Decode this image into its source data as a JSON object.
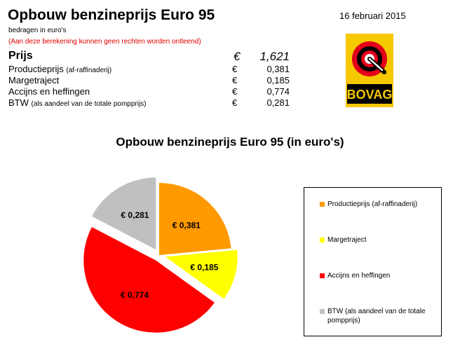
{
  "header": {
    "title": "Opbouw benzineprijs Euro 95",
    "date": "16 februari 2015",
    "subtitle": "bedragen in euro's",
    "disclaimer": "(Aan deze berekening kunnen geen rechten worden ontleend)"
  },
  "summary": {
    "total": {
      "label": "Prijs",
      "currency": "€",
      "value": "1,621"
    },
    "rows": [
      {
        "label": "Productieprijs",
        "note": "(af-raffinaderij)",
        "currency": "€",
        "value": "0,381"
      },
      {
        "label": "Margetraject",
        "note": "",
        "currency": "€",
        "value": "0,185"
      },
      {
        "label": "Accijns en heffingen",
        "note": "",
        "currency": "€",
        "value": "0,774"
      },
      {
        "label": "BTW",
        "note": "(als aandeel van de totale pompprijs)",
        "currency": "€",
        "value": "0,281"
      }
    ]
  },
  "logo": {
    "text": "BOVAG",
    "icon": "bovag-logo-icon",
    "colors": {
      "yellow": "#f5c800",
      "red": "#e3001b",
      "black": "#000000"
    }
  },
  "chart_data": {
    "type": "pie",
    "title": "Opbouw benzineprijs Euro 95 (in euro's)",
    "slices": [
      {
        "name": "Productieprijs (af-raffinaderij)",
        "value": 0.381,
        "label": "€ 0,381",
        "color": "#ff9900",
        "exploded": false
      },
      {
        "name": "Margetraject",
        "value": 0.185,
        "label": "€ 0,185",
        "color": "#ffff00",
        "exploded": true
      },
      {
        "name": "Accijns en heffingen",
        "value": 0.774,
        "label": "€ 0,774",
        "color": "#ff0000",
        "exploded": true
      },
      {
        "name": "BTW (als aandeel van de totale pompprijs)",
        "value": 0.281,
        "label": "€ 0,281",
        "color": "#c0c0c0",
        "exploded": true
      }
    ],
    "legend": {
      "position": "right"
    }
  }
}
